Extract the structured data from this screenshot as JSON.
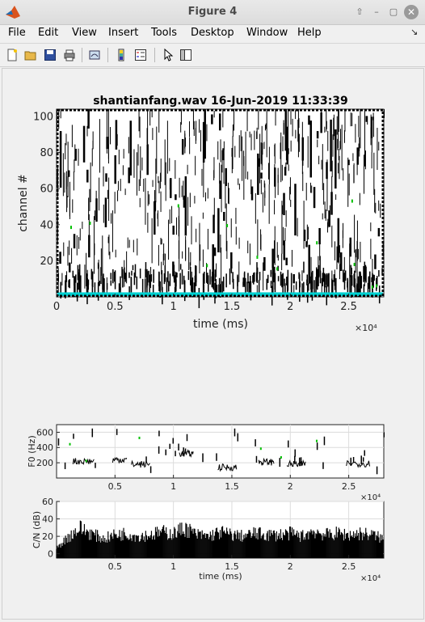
{
  "window": {
    "title": "Figure 4"
  },
  "menu": [
    "File",
    "Edit",
    "View",
    "Insert",
    "Tools",
    "Desktop",
    "Window",
    "Help"
  ],
  "toolbar": [
    "new-figure",
    "open-file",
    "save-figure",
    "print-figure",
    "link-plot",
    "insert-colorbar",
    "insert-legend",
    "edit-plot",
    "property-inspector"
  ],
  "chart_data": [
    {
      "type": "heatmap",
      "title": "shantianfang.wav  16-Jun-2019 11:33:39",
      "xlabel": "time (ms)",
      "ylabel": "channel #",
      "xlim": [
        0,
        28000
      ],
      "ylim": [
        0,
        104
      ],
      "xticks": [
        0,
        5000,
        10000,
        15000,
        20000,
        25000
      ],
      "xticklabels": [
        "0",
        "0.5",
        "1",
        "1.5",
        "2",
        "2.5"
      ],
      "yticks": [
        20,
        40,
        60,
        80,
        100
      ],
      "x_exponent": "×10⁴",
      "colors": [
        "#000000",
        "#ffffff",
        "#00d0d0",
        "#00c000"
      ]
    },
    {
      "type": "scatter",
      "xlabel": "",
      "ylabel": "F0 (Hz)",
      "xlim": [
        0,
        28000
      ],
      "ylim": [
        0,
        700
      ],
      "xticks": [
        5000,
        10000,
        15000,
        20000,
        25000
      ],
      "xticklabels": [
        "0.5",
        "1",
        "1.5",
        "2",
        "2.5"
      ],
      "yticks": [
        200,
        400,
        600
      ],
      "x_exponent": "×10⁴",
      "grid": true,
      "segments": [
        {
          "t0": 1400,
          "t1": 3200,
          "f": 220
        },
        {
          "t0": 4800,
          "t1": 6000,
          "f": 240
        },
        {
          "t0": 6400,
          "t1": 8000,
          "f": 180
        },
        {
          "t0": 10500,
          "t1": 11700,
          "f": 320
        },
        {
          "t0": 13800,
          "t1": 15400,
          "f": 140
        },
        {
          "t0": 17300,
          "t1": 18600,
          "f": 210
        },
        {
          "t0": 19700,
          "t1": 21300,
          "f": 180
        },
        {
          "t0": 24800,
          "t1": 26800,
          "f": 190
        }
      ]
    },
    {
      "type": "area",
      "xlabel": "time (ms)",
      "ylabel": "C/N (dB)",
      "xlim": [
        0,
        28000
      ],
      "ylim": [
        -5,
        60
      ],
      "xticks": [
        5000,
        10000,
        15000,
        20000,
        25000
      ],
      "xticklabels": [
        "0.5",
        "1",
        "1.5",
        "2",
        "2.5"
      ],
      "yticks": [
        0,
        20,
        40,
        60
      ],
      "x_exponent": "×10⁴",
      "grid": true,
      "envelope": [
        [
          0,
          8
        ],
        [
          1000,
          25
        ],
        [
          2000,
          38
        ],
        [
          3000,
          30
        ],
        [
          4000,
          22
        ],
        [
          5000,
          28
        ],
        [
          6000,
          30
        ],
        [
          7000,
          26
        ],
        [
          8000,
          28
        ],
        [
          9000,
          32
        ],
        [
          10000,
          30
        ],
        [
          11000,
          38
        ],
        [
          12000,
          28
        ],
        [
          13000,
          26
        ],
        [
          14000,
          32
        ],
        [
          15000,
          28
        ],
        [
          16000,
          26
        ],
        [
          17000,
          30
        ],
        [
          18000,
          28
        ],
        [
          19000,
          28
        ],
        [
          20000,
          30
        ],
        [
          21000,
          26
        ],
        [
          22000,
          34
        ],
        [
          23000,
          28
        ],
        [
          24000,
          30
        ],
        [
          25000,
          28
        ],
        [
          26000,
          30
        ],
        [
          27000,
          28
        ],
        [
          28000,
          22
        ]
      ]
    }
  ]
}
